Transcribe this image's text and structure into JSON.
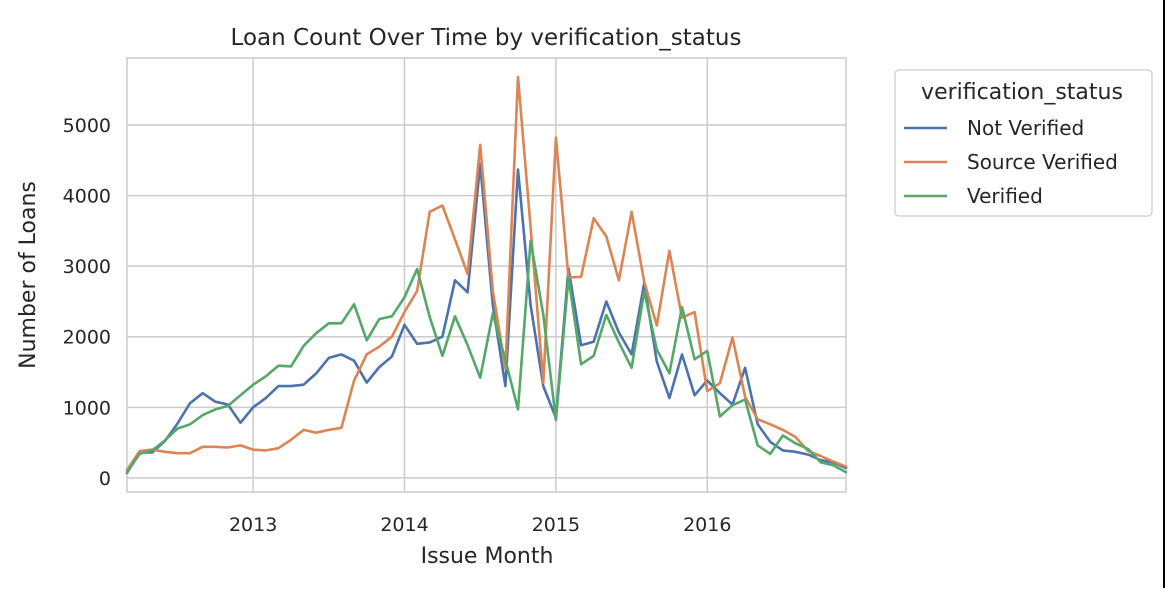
{
  "chart_data": {
    "type": "line",
    "title": "Loan Count Over Time by verification_status",
    "xlabel": "Issue Month",
    "ylabel": "Number of Loans",
    "xlim": [
      "2012-03",
      "2016-12"
    ],
    "ylim": [
      -200,
      5950
    ],
    "x_ticks": [
      {
        "value": "2013-01",
        "label": "2013"
      },
      {
        "value": "2014-01",
        "label": "2014"
      },
      {
        "value": "2015-01",
        "label": "2015"
      },
      {
        "value": "2016-01",
        "label": "2016"
      }
    ],
    "y_ticks": [
      0,
      1000,
      2000,
      3000,
      4000,
      5000
    ],
    "grid": true,
    "legend": {
      "title": "verification_status",
      "placement": "outside-right"
    },
    "x": [
      "2012-03",
      "2012-04",
      "2012-05",
      "2012-06",
      "2012-07",
      "2012-08",
      "2012-09",
      "2012-10",
      "2012-11",
      "2012-12",
      "2013-01",
      "2013-02",
      "2013-03",
      "2013-04",
      "2013-05",
      "2013-06",
      "2013-07",
      "2013-08",
      "2013-09",
      "2013-10",
      "2013-11",
      "2013-12",
      "2014-01",
      "2014-02",
      "2014-03",
      "2014-04",
      "2014-05",
      "2014-06",
      "2014-07",
      "2014-08",
      "2014-09",
      "2014-10",
      "2014-11",
      "2014-12",
      "2015-01",
      "2015-02",
      "2015-03",
      "2015-04",
      "2015-05",
      "2015-06",
      "2015-07",
      "2015-08",
      "2015-09",
      "2015-10",
      "2015-11",
      "2015-12",
      "2016-01",
      "2016-02",
      "2016-03",
      "2016-04",
      "2016-05",
      "2016-06",
      "2016-07",
      "2016-08",
      "2016-09",
      "2016-10",
      "2016-11",
      "2016-12"
    ],
    "series": [
      {
        "name": "Not Verified",
        "color": "#4c72b0",
        "values": [
          70,
          360,
          360,
          520,
          770,
          1060,
          1200,
          1080,
          1040,
          780,
          1000,
          1130,
          1300,
          1300,
          1320,
          1480,
          1700,
          1750,
          1660,
          1350,
          1570,
          1720,
          2170,
          1900,
          1920,
          2000,
          2800,
          2630,
          4450,
          2450,
          1300,
          4370,
          2450,
          1300,
          850,
          2970,
          1880,
          1930,
          2500,
          2060,
          1750,
          2760,
          1650,
          1130,
          1750,
          1170,
          1380,
          1200,
          1040,
          1560,
          760,
          510,
          390,
          370,
          330,
          250,
          220,
          140
        ]
      },
      {
        "name": "Source Verified",
        "color": "#dd8452",
        "values": [
          110,
          380,
          400,
          370,
          350,
          350,
          440,
          440,
          430,
          460,
          400,
          390,
          420,
          540,
          680,
          640,
          680,
          710,
          1380,
          1750,
          1860,
          2000,
          2350,
          2650,
          3770,
          3860,
          3380,
          2890,
          4720,
          2650,
          1550,
          5680,
          3550,
          1350,
          4820,
          2840,
          2850,
          3680,
          3420,
          2800,
          3770,
          2780,
          2160,
          3220,
          2270,
          2350,
          1230,
          1340,
          1990,
          1150,
          830,
          760,
          680,
          580,
          380,
          310,
          230,
          160
        ]
      },
      {
        "name": "Verified",
        "color": "#55a868",
        "values": [
          80,
          340,
          390,
          530,
          700,
          760,
          890,
          970,
          1020,
          1170,
          1320,
          1440,
          1590,
          1580,
          1870,
          2050,
          2190,
          2190,
          2460,
          1950,
          2250,
          2290,
          2560,
          2960,
          2280,
          1730,
          2290,
          1880,
          1420,
          2330,
          1670,
          970,
          3360,
          2310,
          820,
          2840,
          1610,
          1730,
          2310,
          1920,
          1560,
          2640,
          1820,
          1480,
          2420,
          1680,
          1800,
          870,
          1030,
          1110,
          460,
          340,
          600,
          490,
          410,
          220,
          180,
          80
        ]
      }
    ]
  }
}
